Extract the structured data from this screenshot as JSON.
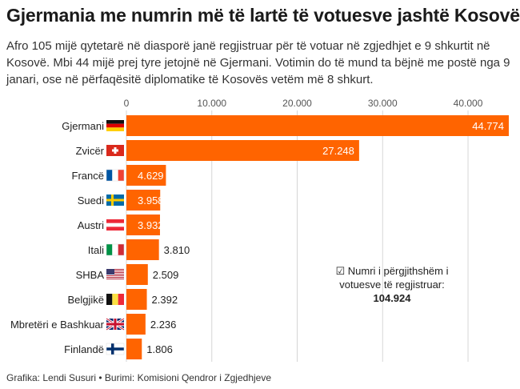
{
  "title": "Gjermania me numrin më të lartë të votuesve jashtë Kosovës",
  "subtitle": "Afro 105 mijë qytetarë në diasporë janë regjistruar për të votuar në zgjedhjet e 9 shkurtit në Kosovë. Mbi 44 mijë prej tyre jetojnë në Gjermani. Votimin do të mund ta bëjnë me postë nga 9 janari, ose në përfaqësitë diplomatike të Kosovës vetëm më 8 shkurt.",
  "note": {
    "icon": "checkbox-icon",
    "text": "Numri i përgjithshëm i votuesve të regjistruar:",
    "total": "104.924"
  },
  "footer": "Grafika: Lendi Susuri • Burimi: Komisioni Qendror i Zgjedhjeve",
  "colors": {
    "bar": "#ff6400",
    "grid": "#d6d6d6",
    "text": "#1f1f1f"
  },
  "chart_data": {
    "type": "bar",
    "orientation": "horizontal",
    "categories": [
      "Gjermani",
      "Zvicër",
      "Francë",
      "Suedi",
      "Austri",
      "Itali",
      "SHBA",
      "Belgjikë",
      "Mbretëri e Bashkuar",
      "Finlandë"
    ],
    "flags": [
      "flag-germany-icon",
      "flag-switzerland-icon",
      "flag-france-icon",
      "flag-sweden-icon",
      "flag-austria-icon",
      "flag-italy-icon",
      "flag-usa-icon",
      "flag-belgium-icon",
      "flag-uk-icon",
      "flag-finland-icon"
    ],
    "values": [
      44774,
      27248,
      4629,
      3958,
      3932,
      3810,
      2509,
      2392,
      2236,
      1806
    ],
    "labels": [
      "44.774",
      "27.248",
      "4.629",
      "3.958",
      "3.932",
      "3.810",
      "2.509",
      "2.392",
      "2.236",
      "1.806"
    ],
    "label_inside": [
      true,
      true,
      true,
      true,
      true,
      false,
      false,
      false,
      false,
      false
    ],
    "ticks": [
      0,
      10000,
      20000,
      30000,
      40000
    ],
    "tick_labels": [
      "0",
      "10.000",
      "20.000",
      "30.000",
      "40.000"
    ],
    "xlim": [
      0,
      44774
    ],
    "title": "Gjermania me numrin më të lartë të votuesve jashtë Kosovës",
    "xlabel": "",
    "ylabel": ""
  }
}
